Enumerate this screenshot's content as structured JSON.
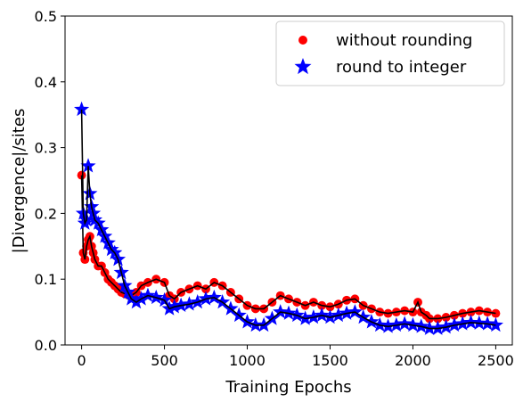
{
  "chart_data": {
    "type": "scatter",
    "xlabel": "Training Epochs",
    "ylabel": "|Divergence|/sites",
    "xlim": [
      -100,
      2600
    ],
    "ylim": [
      0.0,
      0.5
    ],
    "xticks": [
      0,
      500,
      1000,
      1500,
      2000,
      2500
    ],
    "yticks": [
      0.0,
      0.1,
      0.2,
      0.3,
      0.4,
      0.5
    ],
    "xtick_labels": [
      "0",
      "500",
      "1000",
      "1500",
      "2000",
      "2500"
    ],
    "ytick_labels": [
      "0.0",
      "0.1",
      "0.2",
      "0.3",
      "0.4",
      "0.5"
    ],
    "grid": false,
    "legend_position": "top-right",
    "line_color": "#000000",
    "series": [
      {
        "name": "without rounding",
        "marker": "circle",
        "color": "#ff0000",
        "x": [
          0,
          10,
          20,
          30,
          40,
          50,
          60,
          70,
          80,
          100,
          120,
          140,
          160,
          180,
          200,
          220,
          240,
          260,
          280,
          300,
          330,
          360,
          400,
          450,
          500,
          530,
          560,
          600,
          650,
          700,
          750,
          800,
          850,
          900,
          950,
          1000,
          1050,
          1100,
          1150,
          1200,
          1250,
          1300,
          1350,
          1400,
          1450,
          1500,
          1550,
          1600,
          1650,
          1700,
          1750,
          1800,
          1850,
          1900,
          1950,
          2000,
          2030,
          2050,
          2080,
          2100,
          2150,
          2200,
          2250,
          2300,
          2350,
          2400,
          2450,
          2500
        ],
        "y": [
          0.258,
          0.14,
          0.13,
          0.15,
          0.16,
          0.165,
          0.15,
          0.14,
          0.13,
          0.12,
          0.12,
          0.11,
          0.1,
          0.095,
          0.09,
          0.085,
          0.08,
          0.078,
          0.076,
          0.075,
          0.08,
          0.09,
          0.095,
          0.1,
          0.095,
          0.075,
          0.07,
          0.08,
          0.085,
          0.09,
          0.085,
          0.095,
          0.09,
          0.08,
          0.07,
          0.06,
          0.055,
          0.055,
          0.065,
          0.075,
          0.07,
          0.065,
          0.06,
          0.065,
          0.06,
          0.058,
          0.062,
          0.068,
          0.07,
          0.06,
          0.055,
          0.05,
          0.048,
          0.05,
          0.052,
          0.05,
          0.065,
          0.05,
          0.045,
          0.04,
          0.04,
          0.042,
          0.045,
          0.048,
          0.05,
          0.052,
          0.05,
          0.048
        ]
      },
      {
        "name": "round to integer",
        "marker": "star",
        "color": "#0000ff",
        "x": [
          0,
          10,
          20,
          30,
          40,
          50,
          60,
          70,
          80,
          100,
          120,
          140,
          160,
          180,
          200,
          220,
          240,
          260,
          280,
          300,
          330,
          360,
          400,
          450,
          500,
          530,
          560,
          600,
          650,
          700,
          750,
          800,
          850,
          900,
          950,
          1000,
          1050,
          1100,
          1150,
          1200,
          1250,
          1300,
          1350,
          1400,
          1450,
          1500,
          1550,
          1600,
          1650,
          1700,
          1750,
          1800,
          1850,
          1900,
          1950,
          2000,
          2050,
          2100,
          2150,
          2200,
          2250,
          2300,
          2350,
          2400,
          2450,
          2500
        ],
        "y": [
          0.358,
          0.2,
          0.185,
          0.19,
          0.272,
          0.23,
          0.21,
          0.2,
          0.19,
          0.185,
          0.175,
          0.165,
          0.155,
          0.145,
          0.14,
          0.13,
          0.11,
          0.09,
          0.08,
          0.07,
          0.065,
          0.07,
          0.075,
          0.072,
          0.068,
          0.055,
          0.058,
          0.06,
          0.062,
          0.065,
          0.07,
          0.072,
          0.065,
          0.055,
          0.045,
          0.035,
          0.03,
          0.03,
          0.04,
          0.05,
          0.048,
          0.045,
          0.04,
          0.042,
          0.045,
          0.042,
          0.045,
          0.048,
          0.05,
          0.042,
          0.035,
          0.03,
          0.028,
          0.03,
          0.032,
          0.03,
          0.028,
          0.025,
          0.025,
          0.027,
          0.03,
          0.032,
          0.034,
          0.033,
          0.032,
          0.03
        ]
      }
    ]
  }
}
